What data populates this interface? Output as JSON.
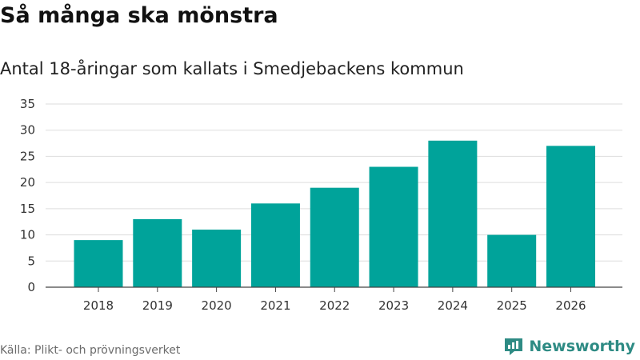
{
  "title": "Så många ska mönstra",
  "subtitle": "Antal 18-åringar som kallats i Smedjebackens kommun",
  "source": "Källa: Plikt- och prövningsverket",
  "brand": "Newsworthy",
  "colors": {
    "bar": "#00a39a",
    "grid": "#dddddd",
    "axis": "#444444",
    "brand": "#2e8b84"
  },
  "chart_data": {
    "type": "bar",
    "title": "Så många ska mönstra",
    "subtitle": "Antal 18-åringar som kallats i Smedjebackens kommun",
    "xlabel": "",
    "ylabel": "",
    "categories": [
      "2018",
      "2019",
      "2020",
      "2021",
      "2022",
      "2023",
      "2024",
      "2025",
      "2026"
    ],
    "values": [
      9,
      13,
      11,
      16,
      19,
      23,
      28,
      10,
      27
    ],
    "ylim": [
      0,
      35
    ],
    "yticks": [
      0,
      5,
      10,
      15,
      20,
      25,
      30,
      35
    ],
    "grid": true
  }
}
